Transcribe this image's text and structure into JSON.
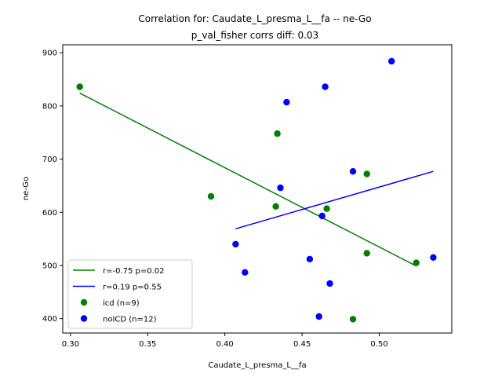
{
  "chart_data": {
    "type": "scatter",
    "title": "Correlation for: Caudate_L_presma_L__fa -- ne-Go",
    "subtitle": "p_val_fisher corrs diff: 0.03",
    "xlabel": "Caudate_L_presma_L__fa",
    "ylabel": "ne-Go",
    "xlim": [
      0.295,
      0.547
    ],
    "ylim": [
      373,
      915
    ],
    "xticks": [
      {
        "value": 0.3,
        "label": "0.30"
      },
      {
        "value": 0.35,
        "label": "0.35"
      },
      {
        "value": 0.4,
        "label": "0.40"
      },
      {
        "value": 0.45,
        "label": "0.45"
      },
      {
        "value": 0.5,
        "label": "0.50"
      }
    ],
    "yticks": [
      {
        "value": 400,
        "label": "400"
      },
      {
        "value": 500,
        "label": "500"
      },
      {
        "value": 600,
        "label": "600"
      },
      {
        "value": 700,
        "label": "700"
      },
      {
        "value": 800,
        "label": "800"
      },
      {
        "value": 900,
        "label": "900"
      }
    ],
    "grid": false,
    "legend_position": "lower-left",
    "series": [
      {
        "name": "icd (n=9)",
        "kind": "points",
        "color": "#008000",
        "points": [
          {
            "x": 0.306,
            "y": 836
          },
          {
            "x": 0.391,
            "y": 630
          },
          {
            "x": 0.433,
            "y": 611
          },
          {
            "x": 0.434,
            "y": 748
          },
          {
            "x": 0.466,
            "y": 607
          },
          {
            "x": 0.483,
            "y": 399
          },
          {
            "x": 0.492,
            "y": 672
          },
          {
            "x": 0.492,
            "y": 523
          },
          {
            "x": 0.524,
            "y": 505
          }
        ]
      },
      {
        "name": "noICD (n=12)",
        "kind": "points",
        "color": "#0000ff",
        "points": [
          {
            "x": 0.407,
            "y": 540
          },
          {
            "x": 0.413,
            "y": 487
          },
          {
            "x": 0.436,
            "y": 646
          },
          {
            "x": 0.44,
            "y": 807
          },
          {
            "x": 0.455,
            "y": 512
          },
          {
            "x": 0.461,
            "y": 404
          },
          {
            "x": 0.463,
            "y": 593
          },
          {
            "x": 0.465,
            "y": 836
          },
          {
            "x": 0.468,
            "y": 466
          },
          {
            "x": 0.483,
            "y": 677
          },
          {
            "x": 0.508,
            "y": 884
          },
          {
            "x": 0.535,
            "y": 515
          }
        ]
      },
      {
        "name": "r=-0.75 p=0.02",
        "kind": "line",
        "color": "#008000",
        "points": [
          {
            "x": 0.306,
            "y": 824
          },
          {
            "x": 0.524,
            "y": 499
          }
        ]
      },
      {
        "name": "r=0.19 p=0.55",
        "kind": "line",
        "color": "#0000ff",
        "points": [
          {
            "x": 0.407,
            "y": 569
          },
          {
            "x": 0.535,
            "y": 677
          }
        ]
      }
    ],
    "legend": [
      {
        "label": "r=-0.75 p=0.02",
        "color": "#008000",
        "marker": "line"
      },
      {
        "label": "r=0.19 p=0.55",
        "color": "#0000ff",
        "marker": "line"
      },
      {
        "label": "icd (n=9)",
        "color": "#008000",
        "marker": "dot"
      },
      {
        "label": "noICD (n=12)",
        "color": "#0000ff",
        "marker": "dot"
      }
    ]
  }
}
